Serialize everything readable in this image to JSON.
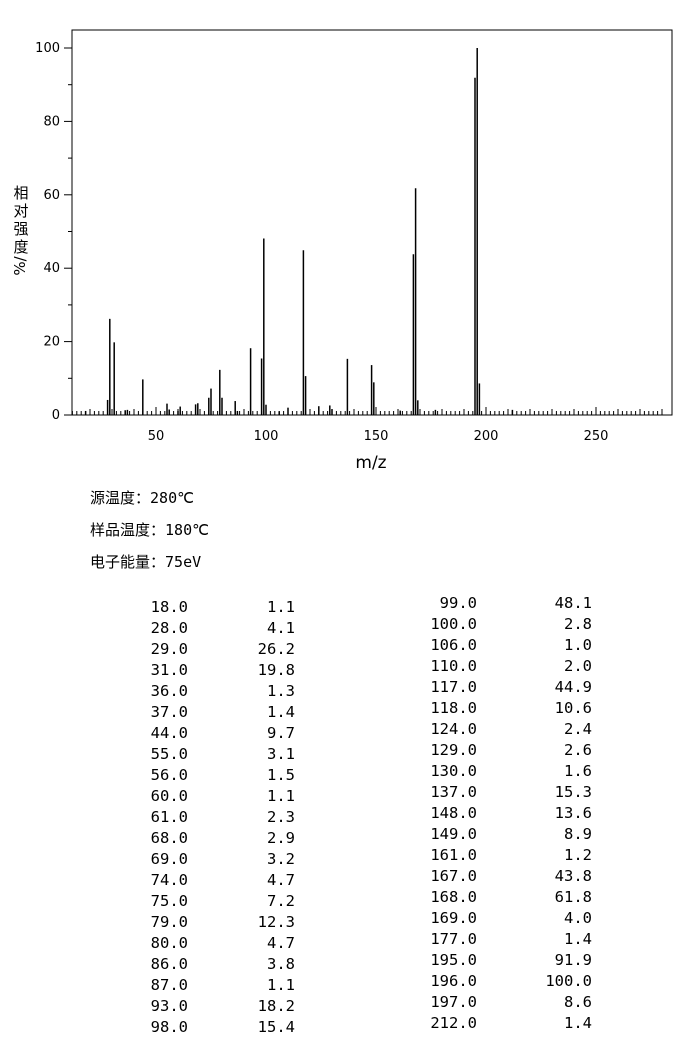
{
  "chart_data": {
    "type": "bar",
    "xlabel": "m/z",
    "ylabel": [
      "相",
      "对",
      "强",
      "度",
      "%/"
    ],
    "xlim": [
      10,
      280
    ],
    "ylim": [
      0,
      105
    ],
    "x_ticks": [
      50,
      100,
      150,
      200,
      250
    ],
    "y_ticks": [
      0,
      20,
      40,
      60,
      80,
      100
    ],
    "x_ticks_minor_step": 2,
    "y_ticks_minor_step": 10,
    "grid": false,
    "peaks": [
      {
        "mz": 18.0,
        "ab": 1.1
      },
      {
        "mz": 28.0,
        "ab": 4.1
      },
      {
        "mz": 29.0,
        "ab": 26.2
      },
      {
        "mz": 31.0,
        "ab": 19.8
      },
      {
        "mz": 36.0,
        "ab": 1.3
      },
      {
        "mz": 37.0,
        "ab": 1.4
      },
      {
        "mz": 44.0,
        "ab": 9.7
      },
      {
        "mz": 55.0,
        "ab": 3.1
      },
      {
        "mz": 56.0,
        "ab": 1.5
      },
      {
        "mz": 60.0,
        "ab": 1.1
      },
      {
        "mz": 61.0,
        "ab": 2.3
      },
      {
        "mz": 68.0,
        "ab": 2.9
      },
      {
        "mz": 69.0,
        "ab": 3.2
      },
      {
        "mz": 74.0,
        "ab": 4.7
      },
      {
        "mz": 75.0,
        "ab": 7.2
      },
      {
        "mz": 79.0,
        "ab": 12.3
      },
      {
        "mz": 80.0,
        "ab": 4.7
      },
      {
        "mz": 86.0,
        "ab": 3.8
      },
      {
        "mz": 87.0,
        "ab": 1.1
      },
      {
        "mz": 93.0,
        "ab": 18.2
      },
      {
        "mz": 98.0,
        "ab": 15.4
      },
      {
        "mz": 99.0,
        "ab": 48.1
      },
      {
        "mz": 100.0,
        "ab": 2.8
      },
      {
        "mz": 106.0,
        "ab": 1.0
      },
      {
        "mz": 110.0,
        "ab": 2.0
      },
      {
        "mz": 117.0,
        "ab": 44.9
      },
      {
        "mz": 118.0,
        "ab": 10.6
      },
      {
        "mz": 124.0,
        "ab": 2.4
      },
      {
        "mz": 129.0,
        "ab": 2.6
      },
      {
        "mz": 130.0,
        "ab": 1.6
      },
      {
        "mz": 137.0,
        "ab": 15.3
      },
      {
        "mz": 148.0,
        "ab": 13.6
      },
      {
        "mz": 149.0,
        "ab": 8.9
      },
      {
        "mz": 161.0,
        "ab": 1.2
      },
      {
        "mz": 167.0,
        "ab": 43.8
      },
      {
        "mz": 168.0,
        "ab": 61.8
      },
      {
        "mz": 169.0,
        "ab": 4.0
      },
      {
        "mz": 177.0,
        "ab": 1.4
      },
      {
        "mz": 195.0,
        "ab": 91.9
      },
      {
        "mz": 196.0,
        "ab": 100.0
      },
      {
        "mz": 197.0,
        "ab": 8.6
      },
      {
        "mz": 212.0,
        "ab": 1.4
      }
    ]
  },
  "conditions": [
    {
      "label": "源温度：",
      "value": "280℃"
    },
    {
      "label": "样品温度：",
      "value": "180℃"
    },
    {
      "label": "电子能量：",
      "value": "75eV"
    }
  ],
  "table_left": [
    {
      "mz": "18.0",
      "ab": "1.1"
    },
    {
      "mz": "28.0",
      "ab": "4.1"
    },
    {
      "mz": "29.0",
      "ab": "26.2"
    },
    {
      "mz": "31.0",
      "ab": "19.8"
    },
    {
      "mz": "36.0",
      "ab": "1.3"
    },
    {
      "mz": "37.0",
      "ab": "1.4"
    },
    {
      "mz": "44.0",
      "ab": "9.7"
    },
    {
      "mz": "55.0",
      "ab": "3.1"
    },
    {
      "mz": "56.0",
      "ab": "1.5"
    },
    {
      "mz": "60.0",
      "ab": "1.1"
    },
    {
      "mz": "61.0",
      "ab": "2.3"
    },
    {
      "mz": "68.0",
      "ab": "2.9"
    },
    {
      "mz": "69.0",
      "ab": "3.2"
    },
    {
      "mz": "74.0",
      "ab": "4.7"
    },
    {
      "mz": "75.0",
      "ab": "7.2"
    },
    {
      "mz": "79.0",
      "ab": "12.3"
    },
    {
      "mz": "80.0",
      "ab": "4.7"
    },
    {
      "mz": "86.0",
      "ab": "3.8"
    },
    {
      "mz": "87.0",
      "ab": "1.1"
    },
    {
      "mz": "93.0",
      "ab": "18.2"
    },
    {
      "mz": "98.0",
      "ab": "15.4"
    }
  ],
  "table_right": [
    {
      "mz": "99.0",
      "ab": "48.1"
    },
    {
      "mz": "100.0",
      "ab": "2.8"
    },
    {
      "mz": "106.0",
      "ab": "1.0"
    },
    {
      "mz": "110.0",
      "ab": "2.0"
    },
    {
      "mz": "117.0",
      "ab": "44.9"
    },
    {
      "mz": "118.0",
      "ab": "10.6"
    },
    {
      "mz": "124.0",
      "ab": "2.4"
    },
    {
      "mz": "129.0",
      "ab": "2.6"
    },
    {
      "mz": "130.0",
      "ab": "1.6"
    },
    {
      "mz": "137.0",
      "ab": "15.3"
    },
    {
      "mz": "148.0",
      "ab": "13.6"
    },
    {
      "mz": "149.0",
      "ab": "8.9"
    },
    {
      "mz": "161.0",
      "ab": "1.2"
    },
    {
      "mz": "167.0",
      "ab": "43.8"
    },
    {
      "mz": "168.0",
      "ab": "61.8"
    },
    {
      "mz": "169.0",
      "ab": "4.0"
    },
    {
      "mz": "177.0",
      "ab": "1.4"
    },
    {
      "mz": "195.0",
      "ab": "91.9"
    },
    {
      "mz": "196.0",
      "ab": "100.0"
    },
    {
      "mz": "197.0",
      "ab": "8.6"
    },
    {
      "mz": "212.0",
      "ab": "1.4"
    }
  ]
}
